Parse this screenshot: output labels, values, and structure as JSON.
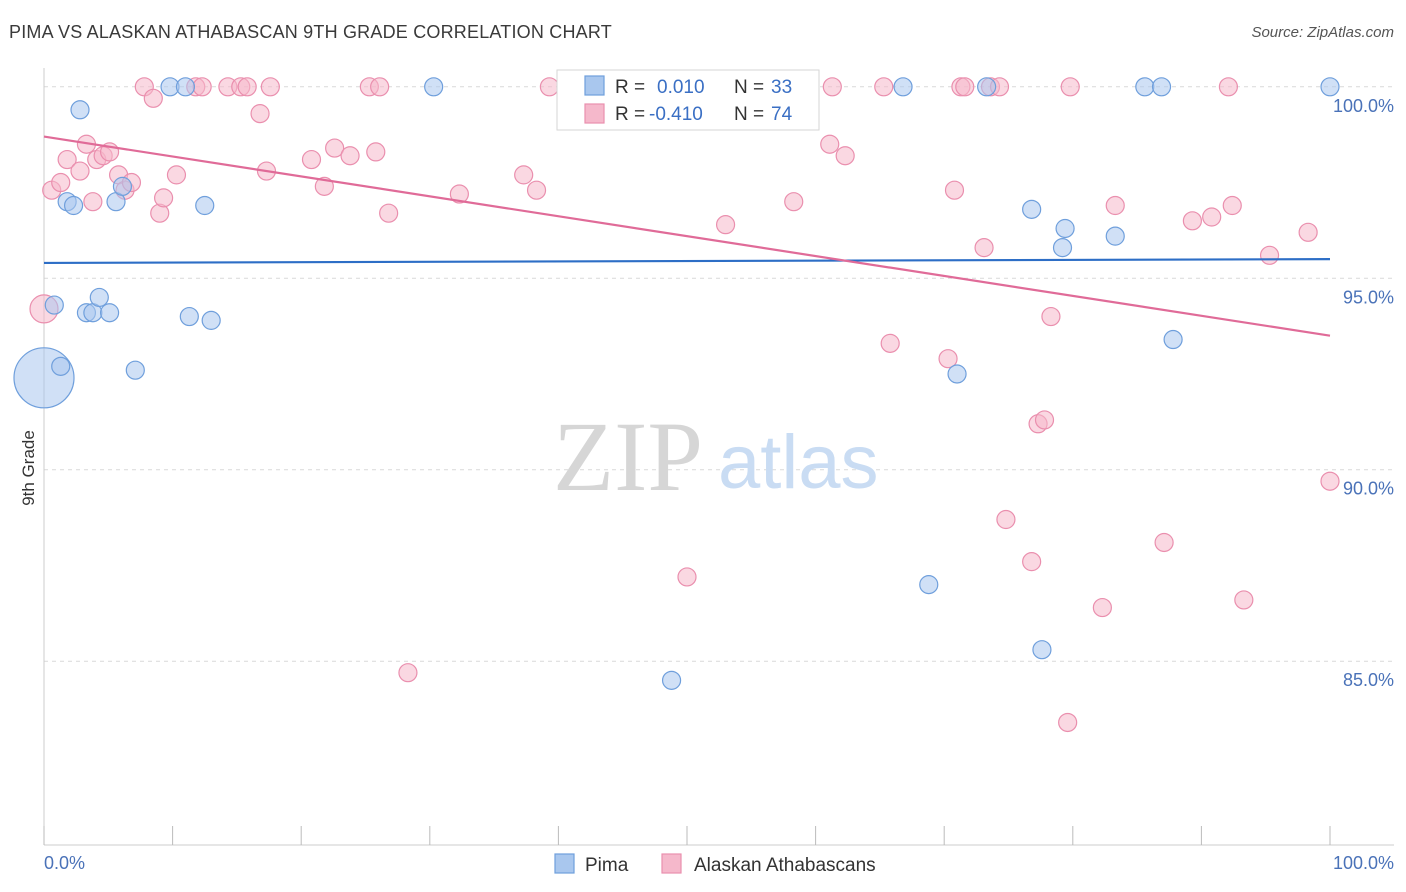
{
  "title": "PIMA VS ALASKAN ATHABASCAN 9TH GRADE CORRELATION CHART",
  "source": "Source: ZipAtlas.com",
  "watermark": {
    "zip": "ZIP",
    "atlas": "atlas"
  },
  "colors": {
    "pima_fill": "#a9c7ee",
    "pima_stroke": "#6f9fdc",
    "pima_line": "#2d6ec6",
    "ath_fill": "#f5b8cb",
    "ath_stroke": "#ea8fae",
    "ath_line": "#e06b98",
    "grid": "#d9d9d9",
    "tick_label": "#4a72b8"
  },
  "chart_data": {
    "type": "scatter",
    "title": "PIMA VS ALASKAN ATHABASCAN 9TH GRADE CORRELATION CHART",
    "xlabel": "",
    "ylabel": "9th Grade",
    "xlim": [
      0,
      100
    ],
    "ylim": [
      80.2,
      100.7
    ],
    "x_tick_labels": [
      "0.0%",
      "100.0%"
    ],
    "y_ticks": [
      85,
      90,
      95,
      100
    ],
    "y_tick_labels": [
      "85.0%",
      "90.0%",
      "95.0%",
      "100.0%"
    ],
    "grid": true,
    "legend_position": "top-center",
    "legend": [
      {
        "label_r": "R =",
        "r": "0.010",
        "label_n": "N =",
        "n": "33"
      },
      {
        "label_r": "R =",
        "r": "-0.410",
        "label_n": "N =",
        "n": "74"
      }
    ],
    "series": [
      {
        "name": "Pima",
        "trend": {
          "x": [
            0,
            100
          ],
          "y": [
            95.4,
            95.5
          ]
        },
        "points": [
          [
            0.0,
            92.4,
            30
          ],
          [
            0.8,
            94.3,
            9
          ],
          [
            1.3,
            92.7,
            9
          ],
          [
            1.8,
            97.0,
            9
          ],
          [
            2.3,
            96.9,
            9
          ],
          [
            2.8,
            99.4,
            9
          ],
          [
            3.3,
            94.1,
            9
          ],
          [
            3.8,
            94.1,
            9
          ],
          [
            4.3,
            94.5,
            9
          ],
          [
            5.1,
            94.1,
            9
          ],
          [
            5.6,
            97.0,
            9
          ],
          [
            6.1,
            97.4,
            9
          ],
          [
            7.1,
            92.6,
            9
          ],
          [
            9.8,
            100.0,
            9
          ],
          [
            11.0,
            100.0,
            9
          ],
          [
            11.3,
            94.0,
            9
          ],
          [
            12.5,
            96.9,
            9
          ],
          [
            13.0,
            93.9,
            9
          ],
          [
            30.3,
            100.0,
            9
          ],
          [
            48.8,
            84.5,
            9
          ],
          [
            66.8,
            100.0,
            9
          ],
          [
            68.8,
            87.0,
            9
          ],
          [
            71.0,
            92.5,
            9
          ],
          [
            73.3,
            100.0,
            9
          ],
          [
            76.8,
            96.8,
            9
          ],
          [
            77.6,
            85.3,
            9
          ],
          [
            79.2,
            95.8,
            9
          ],
          [
            79.4,
            96.3,
            9
          ],
          [
            83.3,
            96.1,
            9
          ],
          [
            85.6,
            100.0,
            9
          ],
          [
            86.9,
            100.0,
            9
          ],
          [
            87.8,
            93.4,
            9
          ],
          [
            100.0,
            100.0,
            9
          ]
        ]
      },
      {
        "name": "Alaskan Athabascans",
        "trend": {
          "x": [
            0,
            100
          ],
          "y": [
            98.7,
            93.5
          ]
        },
        "points": [
          [
            0.0,
            94.2,
            14
          ],
          [
            0.6,
            97.3,
            9
          ],
          [
            1.3,
            97.5,
            9
          ],
          [
            1.8,
            98.1,
            9
          ],
          [
            2.8,
            97.8,
            9
          ],
          [
            3.3,
            98.5,
            9
          ],
          [
            3.8,
            97.0,
            9
          ],
          [
            4.1,
            98.1,
            9
          ],
          [
            4.6,
            98.2,
            9
          ],
          [
            5.1,
            98.3,
            9
          ],
          [
            5.8,
            97.7,
            9
          ],
          [
            6.3,
            97.3,
            9
          ],
          [
            6.8,
            97.5,
            9
          ],
          [
            7.8,
            100.0,
            9
          ],
          [
            8.5,
            99.7,
            9
          ],
          [
            9.0,
            96.7,
            9
          ],
          [
            9.3,
            97.1,
            9
          ],
          [
            10.3,
            97.7,
            9
          ],
          [
            11.8,
            100.0,
            9
          ],
          [
            12.3,
            100.0,
            9
          ],
          [
            14.3,
            100.0,
            9
          ],
          [
            15.3,
            100.0,
            9
          ],
          [
            15.8,
            100.0,
            9
          ],
          [
            16.8,
            99.3,
            9
          ],
          [
            17.3,
            97.8,
            9
          ],
          [
            17.6,
            100.0,
            9
          ],
          [
            20.8,
            98.1,
            9
          ],
          [
            21.8,
            97.4,
            9
          ],
          [
            22.6,
            98.4,
            9
          ],
          [
            23.8,
            98.2,
            9
          ],
          [
            25.3,
            100.0,
            9
          ],
          [
            26.1,
            100.0,
            9
          ],
          [
            25.8,
            98.3,
            9
          ],
          [
            26.8,
            96.7,
            9
          ],
          [
            28.3,
            84.7,
            9
          ],
          [
            32.3,
            97.2,
            9
          ],
          [
            37.3,
            97.7,
            9
          ],
          [
            38.3,
            97.3,
            9
          ],
          [
            39.3,
            100.0,
            9
          ],
          [
            41.0,
            100.0,
            9
          ],
          [
            50.0,
            87.2,
            9
          ],
          [
            53.0,
            96.4,
            9
          ],
          [
            54.3,
            100.0,
            9
          ],
          [
            58.3,
            97.0,
            9
          ],
          [
            61.3,
            100.0,
            9
          ],
          [
            62.3,
            98.2,
            9
          ],
          [
            65.3,
            100.0,
            9
          ],
          [
            65.8,
            93.3,
            9
          ],
          [
            70.3,
            92.9,
            9
          ],
          [
            70.8,
            97.3,
            9
          ],
          [
            71.3,
            100.0,
            9
          ],
          [
            71.6,
            100.0,
            9
          ],
          [
            73.1,
            95.8,
            9
          ],
          [
            73.6,
            100.0,
            9
          ],
          [
            74.3,
            100.0,
            9
          ],
          [
            74.8,
            88.7,
            9
          ],
          [
            76.8,
            87.6,
            9
          ],
          [
            77.3,
            91.2,
            9
          ],
          [
            77.8,
            91.3,
            9
          ],
          [
            78.3,
            94.0,
            9
          ],
          [
            79.6,
            83.4,
            9
          ],
          [
            79.8,
            100.0,
            9
          ],
          [
            82.3,
            86.4,
            9
          ],
          [
            83.3,
            96.9,
            9
          ],
          [
            87.1,
            88.1,
            9
          ],
          [
            89.3,
            96.5,
            9
          ],
          [
            90.8,
            96.6,
            9
          ],
          [
            92.1,
            100.0,
            9
          ],
          [
            93.3,
            86.6,
            9
          ],
          [
            95.3,
            95.6,
            9
          ],
          [
            98.3,
            96.2,
            9
          ],
          [
            100.0,
            89.7,
            9
          ],
          [
            92.4,
            96.9,
            9
          ],
          [
            61.1,
            98.5,
            9
          ]
        ]
      }
    ]
  }
}
